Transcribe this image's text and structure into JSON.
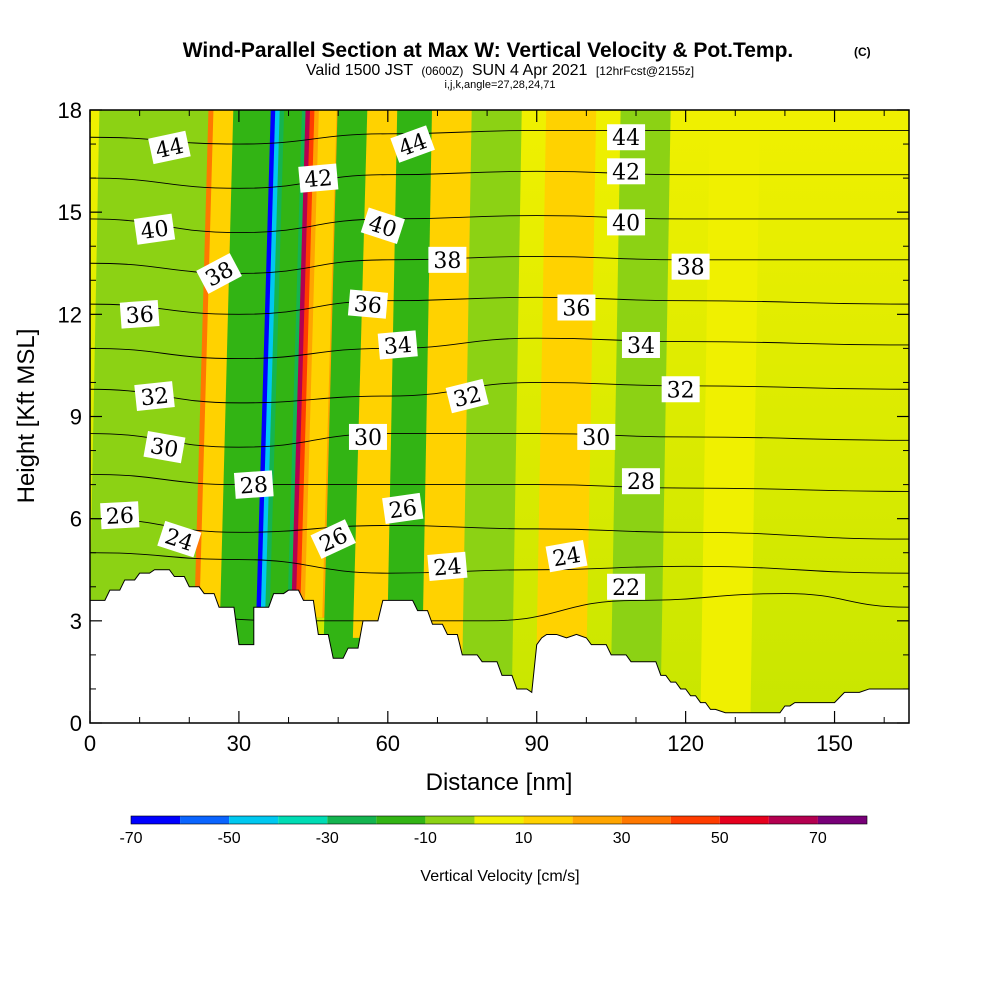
{
  "chart_data": {
    "type": "heatmap",
    "title": "Wind-Parallel Section at Max W: Vertical Velocity & Pot.Temp.",
    "title_mark": "(C)",
    "subtitle_parts": [
      "Valid 1500 JST",
      "(0600Z)",
      "SUN 4 Apr 2021",
      "[12hrFcst@2155z]"
    ],
    "subtitle2": "i,j,k,angle=27,28,24,71",
    "xlabel": "Distance [nm]",
    "ylabel": "Height [Kft MSL]",
    "xlim": [
      0,
      165
    ],
    "ylim": [
      0,
      18
    ],
    "x_ticks": [
      "0",
      "30",
      "60",
      "90",
      "120",
      "150"
    ],
    "x_tick_values": [
      0,
      30,
      60,
      90,
      120,
      150
    ],
    "y_ticks": [
      "0",
      "3",
      "6",
      "9",
      "12",
      "15",
      "18"
    ],
    "y_tick_values": [
      0,
      3,
      6,
      9,
      12,
      15,
      18
    ],
    "colorbar": {
      "label": "Vertical Velocity [cm/s]",
      "bounds": [
        -70,
        -60,
        -50,
        -40,
        -30,
        -20,
        -10,
        0,
        10,
        20,
        30,
        40,
        50,
        60,
        70,
        80
      ],
      "tick_labels": [
        "-70",
        "-50",
        "-30",
        "-10",
        "10",
        "30",
        "50",
        "70"
      ],
      "tick_values": [
        -70,
        -50,
        -30,
        -10,
        10,
        30,
        50,
        70
      ],
      "colors": [
        "#0000ff",
        "#0a64ff",
        "#00c8f0",
        "#00dcb4",
        "#14b450",
        "#32b414",
        "#8cd214",
        "#f0f000",
        "#ffd200",
        "#ffa500",
        "#ff7800",
        "#ff3c00",
        "#e6001e",
        "#b40050",
        "#780078"
      ]
    },
    "w_field_features": [
      {
        "x": 5,
        "w": -10
      },
      {
        "x": 12,
        "w": -10
      },
      {
        "x": 18,
        "w": -10
      },
      {
        "x": 26,
        "w": 35
      },
      {
        "x": 31,
        "w": -15
      },
      {
        "x": 38,
        "w": -65
      },
      {
        "x": 45,
        "w": 62
      },
      {
        "x": 52,
        "w": -15
      },
      {
        "x": 58,
        "w": 15
      },
      {
        "x": 65,
        "w": -15
      },
      {
        "x": 72,
        "w": 12
      },
      {
        "x": 80,
        "w": -8
      },
      {
        "x": 95,
        "w": 10
      },
      {
        "x": 110,
        "w": -5
      },
      {
        "x": 128,
        "w": 5
      }
    ],
    "theta_contours": [
      {
        "value": 22,
        "label": "22",
        "x": [
          0,
          40,
          80,
          110,
          140,
          165
        ],
        "y": [
          3.4,
          3.0,
          3.0,
          3.6,
          3.8,
          3.4
        ]
      },
      {
        "value": 24,
        "label": "24",
        "x": [
          0,
          30,
          60,
          90,
          120,
          165
        ],
        "y": [
          5.0,
          4.8,
          4.4,
          4.5,
          4.6,
          4.4
        ]
      },
      {
        "value": 26,
        "label": "26",
        "x": [
          0,
          30,
          60,
          90,
          120,
          165
        ],
        "y": [
          6.0,
          5.6,
          5.8,
          5.7,
          5.6,
          5.4
        ]
      },
      {
        "value": 28,
        "label": "28",
        "x": [
          0,
          30,
          60,
          90,
          120,
          165
        ],
        "y": [
          7.3,
          7.0,
          7.0,
          7.0,
          6.9,
          6.8
        ]
      },
      {
        "value": 30,
        "label": "30",
        "x": [
          0,
          30,
          60,
          90,
          120,
          165
        ],
        "y": [
          8.5,
          8.1,
          8.5,
          8.5,
          8.4,
          8.3
        ]
      },
      {
        "value": 32,
        "label": "32",
        "x": [
          0,
          30,
          60,
          90,
          120,
          165
        ],
        "y": [
          9.8,
          9.4,
          9.6,
          10.0,
          9.9,
          9.8
        ]
      },
      {
        "value": 34,
        "label": "34",
        "x": [
          0,
          30,
          60,
          90,
          120,
          165
        ],
        "y": [
          11.0,
          10.7,
          11.0,
          11.3,
          11.2,
          11.1
        ]
      },
      {
        "value": 36,
        "label": "36",
        "x": [
          0,
          30,
          60,
          90,
          120,
          165
        ],
        "y": [
          12.3,
          12.0,
          12.4,
          12.5,
          12.4,
          12.3
        ]
      },
      {
        "value": 38,
        "label": "38",
        "x": [
          0,
          30,
          60,
          90,
          120,
          165
        ],
        "y": [
          13.5,
          13.2,
          13.6,
          13.7,
          13.6,
          13.6
        ]
      },
      {
        "value": 40,
        "label": "40",
        "x": [
          0,
          30,
          60,
          90,
          120,
          165
        ],
        "y": [
          14.8,
          14.4,
          14.8,
          14.9,
          14.8,
          14.8
        ]
      },
      {
        "value": 42,
        "label": "42",
        "x": [
          0,
          30,
          60,
          90,
          120,
          165
        ],
        "y": [
          16.0,
          15.7,
          16.1,
          16.2,
          16.1,
          16.1
        ]
      },
      {
        "value": 44,
        "label": "44",
        "x": [
          0,
          30,
          60,
          90,
          120,
          165
        ],
        "y": [
          17.2,
          17.0,
          17.3,
          17.4,
          17.4,
          17.4
        ]
      }
    ],
    "contour_labels": [
      {
        "text": "44",
        "x": 16,
        "y": 16.9,
        "angle": -12
      },
      {
        "text": "44",
        "x": 65,
        "y": 17.0,
        "angle": -20
      },
      {
        "text": "44",
        "x": 108,
        "y": 17.2,
        "angle": 0
      },
      {
        "text": "42",
        "x": 46,
        "y": 16.0,
        "angle": -5
      },
      {
        "text": "42",
        "x": 108,
        "y": 16.2,
        "angle": 0
      },
      {
        "text": "40",
        "x": 13,
        "y": 14.5,
        "angle": -8
      },
      {
        "text": "40",
        "x": 59,
        "y": 14.6,
        "angle": 18
      },
      {
        "text": "40",
        "x": 108,
        "y": 14.7,
        "angle": 0
      },
      {
        "text": "38",
        "x": 26,
        "y": 13.2,
        "angle": -28
      },
      {
        "text": "38",
        "x": 72,
        "y": 13.6,
        "angle": 0
      },
      {
        "text": "38",
        "x": 121,
        "y": 13.4,
        "angle": 0
      },
      {
        "text": "36",
        "x": 10,
        "y": 12.0,
        "angle": -4
      },
      {
        "text": "36",
        "x": 56,
        "y": 12.3,
        "angle": 5
      },
      {
        "text": "36",
        "x": 98,
        "y": 12.2,
        "angle": 0
      },
      {
        "text": "34",
        "x": 62,
        "y": 11.1,
        "angle": -5
      },
      {
        "text": "34",
        "x": 111,
        "y": 11.1,
        "angle": 0
      },
      {
        "text": "32",
        "x": 13,
        "y": 9.6,
        "angle": -6
      },
      {
        "text": "32",
        "x": 76,
        "y": 9.6,
        "angle": -14
      },
      {
        "text": "32",
        "x": 119,
        "y": 9.8,
        "angle": 0
      },
      {
        "text": "30",
        "x": 15,
        "y": 8.1,
        "angle": 10
      },
      {
        "text": "30",
        "x": 56,
        "y": 8.4,
        "angle": 0
      },
      {
        "text": "30",
        "x": 102,
        "y": 8.4,
        "angle": 0
      },
      {
        "text": "28",
        "x": 33,
        "y": 7.0,
        "angle": -4
      },
      {
        "text": "28",
        "x": 111,
        "y": 7.1,
        "angle": 0
      },
      {
        "text": "26",
        "x": 6,
        "y": 6.1,
        "angle": -3
      },
      {
        "text": "26",
        "x": 63,
        "y": 6.3,
        "angle": -8
      },
      {
        "text": "26",
        "x": 49,
        "y": 5.4,
        "angle": -25
      },
      {
        "text": "24",
        "x": 18,
        "y": 5.4,
        "angle": 18
      },
      {
        "text": "24",
        "x": 72,
        "y": 4.6,
        "angle": -5
      },
      {
        "text": "24",
        "x": 96,
        "y": 4.9,
        "angle": -10
      },
      {
        "text": "22",
        "x": 108,
        "y": 4.0,
        "angle": 0
      }
    ],
    "terrain": {
      "x": [
        0,
        3,
        4,
        6,
        7,
        9,
        10,
        12,
        13,
        16,
        17,
        19,
        20,
        22,
        23,
        25,
        26,
        29,
        30,
        33,
        33,
        36,
        37,
        39,
        40,
        42,
        43,
        45,
        46,
        48,
        49,
        51,
        52,
        54,
        55,
        58,
        59,
        65,
        66,
        68,
        69,
        71,
        72,
        74,
        75,
        78,
        79,
        82,
        83,
        85,
        86,
        88,
        89,
        90,
        91,
        92,
        94,
        96,
        98,
        100,
        101,
        104,
        105,
        108,
        109,
        114,
        115,
        116,
        117,
        118,
        119,
        120,
        121,
        122,
        123,
        124,
        125,
        126,
        128,
        134,
        136,
        139,
        140,
        141,
        142,
        150,
        152,
        155,
        157,
        165
      ],
      "y": [
        3.6,
        3.6,
        3.9,
        3.9,
        4.2,
        4.2,
        4.4,
        4.4,
        4.5,
        4.5,
        4.3,
        4.3,
        4.0,
        4.0,
        3.8,
        3.8,
        3.4,
        3.4,
        2.3,
        2.3,
        3.4,
        3.4,
        3.8,
        3.8,
        3.9,
        3.9,
        3.6,
        3.6,
        2.6,
        2.6,
        1.9,
        1.9,
        2.2,
        2.2,
        3.0,
        3.0,
        3.6,
        3.6,
        3.3,
        3.3,
        2.9,
        2.9,
        2.6,
        2.6,
        2.0,
        2.0,
        1.8,
        1.8,
        1.4,
        1.4,
        1.0,
        1.0,
        0.9,
        2.3,
        2.5,
        2.6,
        2.6,
        2.5,
        2.6,
        2.5,
        2.3,
        2.3,
        2.0,
        2.0,
        1.8,
        1.8,
        1.4,
        1.4,
        1.2,
        1.2,
        1.0,
        1.0,
        0.8,
        0.8,
        0.6,
        0.6,
        0.4,
        0.4,
        0.3,
        0.3,
        0.3,
        0.3,
        0.5,
        0.5,
        0.6,
        0.6,
        0.9,
        0.9,
        1.0,
        1.0
      ]
    }
  }
}
